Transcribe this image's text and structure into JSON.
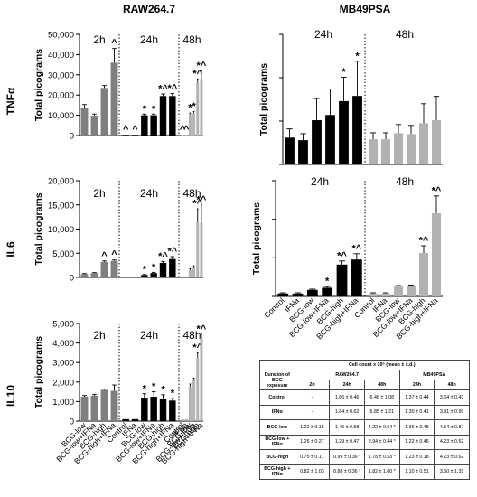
{
  "figure": {
    "column_titles": [
      "RAW264.7",
      "MB49PSA"
    ],
    "row_labels": [
      "TNFα",
      "IL6",
      "IL10"
    ],
    "time_labels": [
      "2h",
      "24h",
      "48h"
    ],
    "ylabel": "Total picograms",
    "bar_colors": {
      "2h": "#7f7f7f",
      "24h": "#000000",
      "48h": "#b2b2b2"
    }
  },
  "chart_data": [
    {
      "id": "raw-tnfa",
      "type": "bar",
      "title": "RAW264.7",
      "row": "TNFα",
      "ylabel": "Total picograms",
      "ylim": [
        0,
        50000
      ],
      "yticks": [
        "0",
        "10,000",
        "20,000",
        "30,000",
        "40,000",
        "50,000"
      ],
      "groups": [
        {
          "time": "2h",
          "categories": [
            "BCG-low",
            "BCG-low+IFNa",
            "BCG-high",
            "BCG-high+IFNa"
          ],
          "values": [
            13500,
            9800,
            23500,
            36000
          ],
          "errors": [
            1800,
            800,
            1200,
            7000
          ],
          "annot": [
            "",
            "",
            "",
            "^"
          ]
        },
        {
          "time": "24h",
          "categories": [
            "Control",
            "IFNa",
            "BCG-low",
            "BCG-low+IFNa",
            "BCG-high",
            "BCG-high+IFNa"
          ],
          "values": [
            100,
            100,
            10000,
            10000,
            19500,
            19500
          ],
          "errors": [
            0,
            0,
            600,
            600,
            1000,
            1200
          ],
          "annot": [
            "^",
            "^",
            "*",
            "*",
            "*^",
            "*^"
          ]
        },
        {
          "time": "48h",
          "categories": [
            "Control",
            "IFNa",
            "BCG-low",
            "BCG-low+IFNa",
            "BCG-high",
            "BCG-high+IFNa"
          ],
          "values": [
            100,
            100,
            10500,
            11000,
            26000,
            28000
          ],
          "errors": [
            0,
            0,
            600,
            800,
            2000,
            4000
          ],
          "annot": [
            "^",
            "^",
            "*",
            "*",
            "*^",
            "*^"
          ]
        }
      ]
    },
    {
      "id": "mb-tnfa",
      "type": "bar",
      "title": "MB49PSA",
      "row": "TNFα",
      "ylabel": "Total picograms",
      "ylim": [
        0,
        30
      ],
      "yticks": [],
      "groups": [
        {
          "time": "24h",
          "categories": [
            "Control",
            "IFNa",
            "BCG-low",
            "BCG-low+IFNa",
            "BCG-high",
            "BCG-high+IFNa"
          ],
          "values": [
            6.2,
            5.6,
            10.2,
            11.4,
            14.6,
            15.8
          ],
          "errors": [
            2.0,
            1.5,
            5.0,
            6.0,
            5.5,
            8.0
          ],
          "annot": [
            "",
            "",
            "",
            "",
            "*",
            "*"
          ]
        },
        {
          "time": "48h",
          "categories": [
            "Control",
            "IFNa",
            "BCG-low",
            "BCG-low+IFNa",
            "BCG-high",
            "BCG-high+IFNa"
          ],
          "values": [
            5.8,
            5.8,
            7.2,
            7.0,
            9.5,
            10.2
          ],
          "errors": [
            1.5,
            1.5,
            2.0,
            2.0,
            4.5,
            5.5
          ],
          "annot": [
            "",
            "",
            "",
            "",
            "",
            ""
          ]
        }
      ]
    },
    {
      "id": "raw-il6",
      "type": "bar",
      "title": "",
      "row": "IL6",
      "ylabel": "Total picograms",
      "ylim": [
        0,
        20000
      ],
      "yticks": [
        "0",
        "5,000",
        "10,000",
        "15,000",
        "20,000"
      ],
      "groups": [
        {
          "time": "2h",
          "categories": [
            "BCG-low",
            "BCG-low+IFNa",
            "BCG-high",
            "BCG-high+IFNa"
          ],
          "values": [
            700,
            900,
            3200,
            3400
          ],
          "errors": [
            100,
            100,
            200,
            200
          ],
          "annot": [
            "",
            "",
            "^",
            "^"
          ]
        },
        {
          "time": "24h",
          "categories": [
            "Control",
            "IFNa",
            "BCG-low",
            "BCG-low+IFNa",
            "BCG-high",
            "BCG-high+IFNa"
          ],
          "values": [
            50,
            50,
            500,
            900,
            3000,
            3800
          ],
          "errors": [
            0,
            0,
            100,
            150,
            300,
            500
          ],
          "annot": [
            "",
            "",
            "*",
            "*",
            "*^",
            "*^"
          ]
        },
        {
          "time": "48h",
          "categories": [
            "Control",
            "IFNa",
            "BCG-low",
            "BCG-low+IFNa",
            "BCG-high",
            "BCG-high+IFNa"
          ],
          "values": [
            50,
            50,
            1500,
            2000,
            11400,
            11300
          ],
          "errors": [
            0,
            0,
            300,
            400,
            2800,
            3700
          ],
          "annot": [
            "",
            "",
            "",
            "",
            "*^",
            "*^"
          ]
        }
      ]
    },
    {
      "id": "mb-il6",
      "type": "bar",
      "title": "",
      "row": "IL6",
      "ylabel": "Total picograms",
      "ylim": [
        0,
        80
      ],
      "yticks": [],
      "groups": [
        {
          "time": "24h",
          "categories": [
            "Control",
            "IFNa",
            "BCG-low",
            "BCG-low+IFNa",
            "BCG-high",
            "BCG-high+IFNa"
          ],
          "values": [
            2.0,
            2.0,
            4.5,
            6.0,
            22.0,
            25.5
          ],
          "errors": [
            0.5,
            0.5,
            0.5,
            0.8,
            2.5,
            4.0
          ],
          "annot": [
            "",
            "",
            "",
            "*",
            "*^",
            "*^"
          ]
        },
        {
          "time": "48h",
          "categories": [
            "Control",
            "IFNa",
            "BCG-low",
            "BCG-low+IFNa",
            "BCG-high",
            "BCG-high+IFNa"
          ],
          "values": [
            2.0,
            2.0,
            7.0,
            7.0,
            30.0,
            57.5
          ],
          "errors": [
            0.5,
            0.5,
            0.5,
            0.8,
            5.0,
            12.0
          ],
          "annot": [
            "",
            "",
            "",
            "",
            "*^",
            "*^"
          ]
        }
      ]
    },
    {
      "id": "raw-il10",
      "type": "bar",
      "title": "",
      "row": "IL10",
      "ylabel": "Total picograms",
      "ylim": [
        0,
        5000
      ],
      "yticks": [
        "0",
        "1,000",
        "2,000",
        "3,000",
        "4,000",
        "5,000"
      ],
      "groups": [
        {
          "time": "2h",
          "categories": [
            "BCG-low",
            "BCG-low+IFNa",
            "BCG-high",
            "BCG-high+IFNa"
          ],
          "values": [
            1250,
            1300,
            1600,
            1550
          ],
          "errors": [
            60,
            60,
            40,
            300
          ],
          "annot": [
            "",
            "",
            "",
            ""
          ]
        },
        {
          "time": "24h",
          "categories": [
            "Control",
            "IFNa",
            "BCG-low",
            "BCG-low+IFNa",
            "BCG-high",
            "BCG-high+IFNa"
          ],
          "values": [
            100,
            100,
            1200,
            1250,
            1150,
            1050
          ],
          "errors": [
            0,
            0,
            200,
            250,
            200,
            100
          ],
          "annot": [
            "",
            "",
            "*",
            "*",
            "*",
            "*"
          ]
        },
        {
          "time": "48h",
          "categories": [
            "Control",
            "IFNa",
            "BCG-low",
            "BCG-low+IFNa",
            "BCG-high",
            "BCG-high+IFNa"
          ],
          "values": [
            100,
            100,
            1750,
            2150,
            3250,
            4250
          ],
          "errors": [
            0,
            0,
            150,
            50,
            250,
            200
          ],
          "annot": [
            "",
            "",
            "",
            "",
            "*^",
            "*^"
          ]
        }
      ]
    }
  ],
  "table": {
    "caption": "Cell count x 10⁶ (mean ± s.d.)",
    "raw_header": "RAW264.7",
    "mb_header": "MB49PSA",
    "col_head": "Duration of BCG exposure",
    "times": [
      "2h",
      "24h",
      "48h",
      "24h",
      "48h"
    ],
    "rows": [
      {
        "label": "Control",
        "cells": [
          "-",
          "1.86 ± 0.46",
          "6.46 ± 1.08",
          "1.37 ± 0.44",
          "3.64 ± 0.43"
        ]
      },
      {
        "label": "IFNα",
        "cells": [
          "-",
          "1.84 ± 0.62",
          "6.85 ± 1.21",
          "1.30 ± 0.41",
          "3.81 ± 0.99"
        ]
      },
      {
        "label": "BCG-low",
        "cells": [
          "1.22 ± 0.15",
          "1.45 ± 0.58",
          "4.22 ± 0.64 *",
          "1.36 ± 0.48",
          "4.54 ± 0.87"
        ]
      },
      {
        "label": "BCG-low + IFNα",
        "cells": [
          "1.26 ± 0.27",
          "1.29 ± 0.47",
          "3.94 ± 0.44 *",
          "1.22 ± 0.46",
          "4.23 ± 0.62"
        ]
      },
      {
        "label": "BCG-high",
        "cells": [
          "0.75 ± 0.17",
          "0.99 ± 0.36 *",
          "1.78 ± 0.53 *",
          "1.23 ± 0.18",
          "4.23 ± 0.62"
        ]
      },
      {
        "label": "BCG-high + IFNα",
        "cells": [
          "0.82 ± 1.03",
          "0.88 ± 0.36 *",
          "1.82 ± 1.00 *",
          "1.10 ± 0.51",
          "3.50 ± 1.31"
        ]
      }
    ]
  }
}
